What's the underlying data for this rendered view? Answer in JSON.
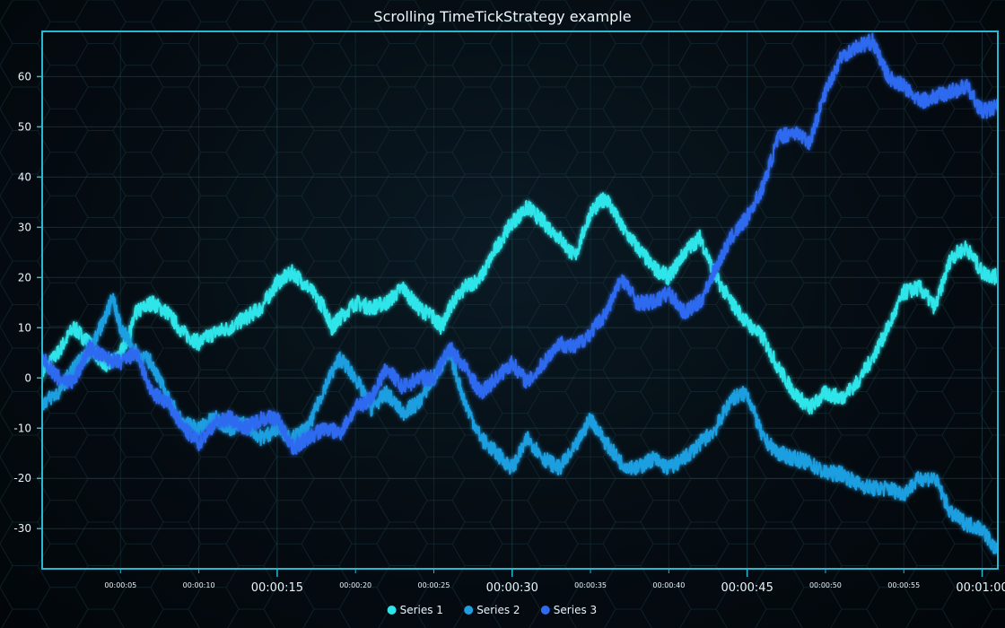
{
  "chart_data": {
    "type": "line",
    "title": "Scrolling TimeTickStrategy example",
    "xlabel": "",
    "ylabel": "",
    "x_unit": "seconds",
    "xlim": [
      0,
      61
    ],
    "ylim": [
      -38,
      69
    ],
    "y_ticks": [
      -30,
      -20,
      -10,
      0,
      10,
      20,
      30,
      40,
      50,
      60
    ],
    "x_major_ticks": [
      {
        "t": 15,
        "label": "00:00:15"
      },
      {
        "t": 30,
        "label": "00:00:30"
      },
      {
        "t": 45,
        "label": "00:00:45"
      },
      {
        "t": 60,
        "label": "00:01:00"
      }
    ],
    "x_minor_ticks": [
      {
        "t": 5,
        "label": "00:00:05"
      },
      {
        "t": 10,
        "label": "00:00:10"
      },
      {
        "t": 20,
        "label": "00:00:20"
      },
      {
        "t": 25,
        "label": "00:00:25"
      },
      {
        "t": 35,
        "label": "00:00:35"
      },
      {
        "t": 40,
        "label": "00:00:40"
      },
      {
        "t": 50,
        "label": "00:00:50"
      },
      {
        "t": 55,
        "label": "00:00:55"
      }
    ],
    "grid": true,
    "legend_position": "bottom-center",
    "series": [
      {
        "name": "Series 1",
        "color": "#2ee6ea",
        "points": [
          [
            0,
            1
          ],
          [
            1,
            5
          ],
          [
            2,
            10
          ],
          [
            3,
            7
          ],
          [
            4,
            2
          ],
          [
            5,
            5
          ],
          [
            5.5,
            8
          ],
          [
            6,
            13
          ],
          [
            7,
            15
          ],
          [
            8,
            13
          ],
          [
            9,
            9
          ],
          [
            10,
            7
          ],
          [
            11,
            9
          ],
          [
            12,
            10
          ],
          [
            13,
            12
          ],
          [
            14,
            14
          ],
          [
            15,
            19
          ],
          [
            16,
            21
          ],
          [
            17,
            18
          ],
          [
            18,
            14
          ],
          [
            18.5,
            10
          ],
          [
            19,
            12
          ],
          [
            20,
            15
          ],
          [
            21,
            14
          ],
          [
            22,
            15
          ],
          [
            23,
            18
          ],
          [
            24,
            14
          ],
          [
            25,
            12
          ],
          [
            25.5,
            10
          ],
          [
            26,
            14
          ],
          [
            27,
            18
          ],
          [
            28,
            20
          ],
          [
            29,
            26
          ],
          [
            30,
            31
          ],
          [
            31,
            34
          ],
          [
            32,
            31
          ],
          [
            33,
            28
          ],
          [
            34,
            24
          ],
          [
            35,
            33
          ],
          [
            36,
            36
          ],
          [
            37,
            30
          ],
          [
            38,
            26
          ],
          [
            39,
            22
          ],
          [
            40,
            20
          ],
          [
            41,
            25
          ],
          [
            42,
            28
          ],
          [
            43,
            20
          ],
          [
            44,
            15
          ],
          [
            45,
            11
          ],
          [
            46,
            8
          ],
          [
            47,
            2
          ],
          [
            48,
            -3
          ],
          [
            49,
            -6
          ],
          [
            50,
            -3
          ],
          [
            51,
            -4
          ],
          [
            52,
            -1
          ],
          [
            53,
            4
          ],
          [
            54,
            10
          ],
          [
            55,
            17
          ],
          [
            56,
            18
          ],
          [
            57,
            14
          ],
          [
            58,
            24
          ],
          [
            59,
            26
          ],
          [
            60,
            21
          ],
          [
            61,
            20
          ]
        ]
      },
      {
        "name": "Series 2",
        "color": "#1f9fe0",
        "points": [
          [
            0,
            -5
          ],
          [
            1,
            -3
          ],
          [
            2,
            2
          ],
          [
            3,
            5
          ],
          [
            4,
            12
          ],
          [
            4.5,
            16
          ],
          [
            5,
            10
          ],
          [
            6,
            5
          ],
          [
            7,
            3
          ],
          [
            8,
            -4
          ],
          [
            9,
            -9
          ],
          [
            10,
            -10
          ],
          [
            11,
            -8
          ],
          [
            12,
            -10
          ],
          [
            13,
            -9
          ],
          [
            14,
            -12
          ],
          [
            15,
            -10
          ],
          [
            16,
            -12
          ],
          [
            17,
            -10
          ],
          [
            18,
            -2
          ],
          [
            19,
            4
          ],
          [
            20,
            0
          ],
          [
            21,
            -6
          ],
          [
            22,
            -3
          ],
          [
            23,
            -7
          ],
          [
            24,
            -5
          ],
          [
            25,
            0
          ],
          [
            26,
            5
          ],
          [
            27,
            -5
          ],
          [
            28,
            -12
          ],
          [
            29,
            -15
          ],
          [
            30,
            -18
          ],
          [
            31,
            -12
          ],
          [
            32,
            -16
          ],
          [
            33,
            -18
          ],
          [
            34,
            -14
          ],
          [
            35,
            -8
          ],
          [
            36,
            -13
          ],
          [
            37,
            -17
          ],
          [
            38,
            -18
          ],
          [
            39,
            -16
          ],
          [
            40,
            -18
          ],
          [
            41,
            -16
          ],
          [
            42,
            -13
          ],
          [
            43,
            -10
          ],
          [
            44,
            -4
          ],
          [
            45,
            -3
          ],
          [
            46,
            -12
          ],
          [
            47,
            -15
          ],
          [
            48,
            -16
          ],
          [
            49,
            -17
          ],
          [
            50,
            -19
          ],
          [
            51,
            -19
          ],
          [
            52,
            -21
          ],
          [
            53,
            -22
          ],
          [
            54,
            -22
          ],
          [
            55,
            -23
          ],
          [
            56,
            -20
          ],
          [
            57,
            -20
          ],
          [
            58,
            -27
          ],
          [
            59,
            -29
          ],
          [
            60,
            -30
          ],
          [
            61,
            -35
          ]
        ]
      },
      {
        "name": "Series 3",
        "color": "#2f6bf0",
        "points": [
          [
            0,
            4
          ],
          [
            1,
            0
          ],
          [
            2,
            -1
          ],
          [
            3,
            6
          ],
          [
            4,
            4
          ],
          [
            5,
            3
          ],
          [
            6,
            5
          ],
          [
            7,
            -3
          ],
          [
            8,
            -5
          ],
          [
            9,
            -10
          ],
          [
            10,
            -13
          ],
          [
            11,
            -9
          ],
          [
            12,
            -8
          ],
          [
            13,
            -10
          ],
          [
            14,
            -8
          ],
          [
            15,
            -8
          ],
          [
            16,
            -14
          ],
          [
            17,
            -12
          ],
          [
            18,
            -10
          ],
          [
            19,
            -11
          ],
          [
            20,
            -6
          ],
          [
            21,
            -4
          ],
          [
            22,
            2
          ],
          [
            23,
            -2
          ],
          [
            24,
            0
          ],
          [
            25,
            0
          ],
          [
            26,
            6
          ],
          [
            27,
            2
          ],
          [
            28,
            -3
          ],
          [
            29,
            0
          ],
          [
            30,
            3
          ],
          [
            31,
            -1
          ],
          [
            32,
            3
          ],
          [
            33,
            7
          ],
          [
            34,
            6
          ],
          [
            35,
            9
          ],
          [
            36,
            13
          ],
          [
            37,
            20
          ],
          [
            38,
            15
          ],
          [
            39,
            15
          ],
          [
            40,
            17
          ],
          [
            41,
            13
          ],
          [
            42,
            15
          ],
          [
            43,
            22
          ],
          [
            44,
            28
          ],
          [
            45,
            32
          ],
          [
            46,
            38
          ],
          [
            47,
            48
          ],
          [
            48,
            49
          ],
          [
            49,
            47
          ],
          [
            50,
            57
          ],
          [
            51,
            64
          ],
          [
            52,
            66
          ],
          [
            53,
            67
          ],
          [
            54,
            60
          ],
          [
            55,
            58
          ],
          [
            56,
            55
          ],
          [
            57,
            56
          ],
          [
            58,
            57
          ],
          [
            59,
            58
          ],
          [
            60,
            53
          ],
          [
            61,
            54
          ]
        ]
      }
    ]
  }
}
